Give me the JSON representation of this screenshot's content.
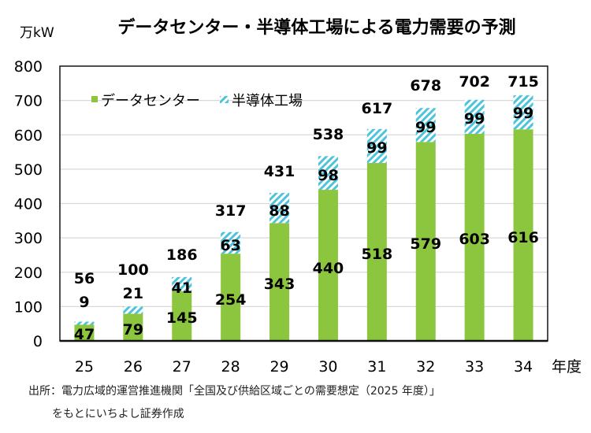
{
  "chart_data": {
    "type": "bar",
    "stacked": true,
    "title": "データセンター・半導体工場による電力需要の予測",
    "ylabel": "万kW",
    "xlabel": "年度",
    "ylim": [
      0,
      800
    ],
    "yticks": [
      0,
      100,
      200,
      300,
      400,
      500,
      600,
      700,
      800
    ],
    "grid": true,
    "legend_position": "top-left",
    "categories": [
      "25",
      "26",
      "27",
      "28",
      "29",
      "30",
      "31",
      "32",
      "33",
      "34"
    ],
    "series": [
      {
        "name": "データセンター",
        "color": "#8cc63f",
        "pattern": "solid",
        "values": [
          47,
          79,
          145,
          254,
          343,
          440,
          518,
          579,
          603,
          616
        ]
      },
      {
        "name": "半導体工場",
        "color": "#4dc3dc",
        "pattern": "diagonal-hatch",
        "values": [
          9,
          21,
          41,
          63,
          88,
          98,
          99,
          99,
          99,
          99
        ]
      }
    ],
    "totals": [
      56,
      100,
      186,
      317,
      431,
      538,
      617,
      678,
      702,
      715
    ]
  },
  "source_note": {
    "line1": "出所：電力広域的運営推進機関「全国及び供給区域ごとの需要想定（2025 年度）」",
    "line2": "をもとにいちよし証券作成"
  }
}
